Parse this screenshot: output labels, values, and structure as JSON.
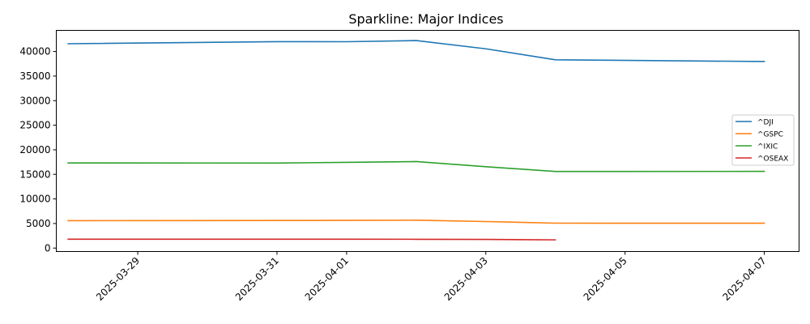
{
  "chart_data": {
    "type": "line",
    "title": "Sparkline: Major Indices",
    "xlabel": "",
    "ylabel": "",
    "x_type": "date",
    "xlim": [
      "2025-03-27T19:55",
      "2025-04-07T12:00"
    ],
    "ylim": [
      -700,
      44300
    ],
    "x_ticks": [
      "2025-03-29",
      "2025-03-31",
      "2025-04-01",
      "2025-04-03",
      "2025-04-05",
      "2025-04-07"
    ],
    "y_ticks": [
      0,
      5000,
      10000,
      15000,
      20000,
      25000,
      30000,
      35000,
      40000
    ],
    "grid": false,
    "legend_position": "center-right",
    "series": [
      {
        "name": "^DJI",
        "color": "#1f77b4",
        "points": [
          {
            "x": "2025-03-28",
            "y": 41580
          },
          {
            "x": "2025-03-31",
            "y": 42000
          },
          {
            "x": "2025-04-01",
            "y": 41990
          },
          {
            "x": "2025-04-02",
            "y": 42230
          },
          {
            "x": "2025-04-03",
            "y": 40550
          },
          {
            "x": "2025-04-04",
            "y": 38310
          },
          {
            "x": "2025-04-07",
            "y": 37960
          }
        ]
      },
      {
        "name": "^GSPC",
        "color": "#ff7f0e",
        "points": [
          {
            "x": "2025-03-28",
            "y": 5580
          },
          {
            "x": "2025-03-31",
            "y": 5610
          },
          {
            "x": "2025-04-01",
            "y": 5630
          },
          {
            "x": "2025-04-02",
            "y": 5670
          },
          {
            "x": "2025-04-03",
            "y": 5400
          },
          {
            "x": "2025-04-04",
            "y": 5070
          },
          {
            "x": "2025-04-07",
            "y": 5060
          }
        ]
      },
      {
        "name": "^IXIC",
        "color": "#2ca02c",
        "points": [
          {
            "x": "2025-03-28",
            "y": 17320
          },
          {
            "x": "2025-03-31",
            "y": 17300
          },
          {
            "x": "2025-04-01",
            "y": 17450
          },
          {
            "x": "2025-04-02",
            "y": 17600
          },
          {
            "x": "2025-04-03",
            "y": 16550
          },
          {
            "x": "2025-04-04",
            "y": 15590
          },
          {
            "x": "2025-04-07",
            "y": 15600
          }
        ]
      },
      {
        "name": "^OSEAX",
        "color": "#d62728",
        "points": [
          {
            "x": "2025-03-28",
            "y": 1800
          },
          {
            "x": "2025-03-31",
            "y": 1810
          },
          {
            "x": "2025-04-01",
            "y": 1810
          },
          {
            "x": "2025-04-02",
            "y": 1790
          },
          {
            "x": "2025-04-03",
            "y": 1760
          },
          {
            "x": "2025-04-04",
            "y": 1670
          }
        ]
      }
    ]
  }
}
